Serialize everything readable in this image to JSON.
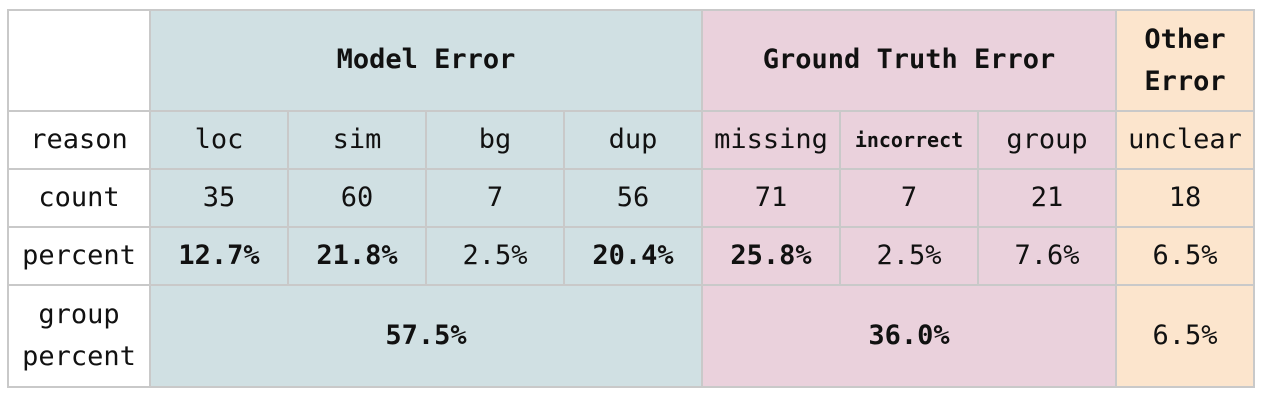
{
  "groups": {
    "model": "Model Error",
    "gt": "Ground Truth Error",
    "other_line1": "Other",
    "other_line2": "Error"
  },
  "row_labels": {
    "reason": "reason",
    "count": "count",
    "percent": "percent",
    "group_line1": "group",
    "group_line2": "percent"
  },
  "reasons": [
    "loc",
    "sim",
    "bg",
    "dup",
    "missing",
    "incorrect",
    "group",
    "unclear"
  ],
  "counts": [
    "35",
    "60",
    "7",
    "56",
    "71",
    "7",
    "21",
    "18"
  ],
  "percents": [
    "12.7%",
    "21.8%",
    "2.5%",
    "20.4%",
    "25.8%",
    "2.5%",
    "7.6%",
    "6.5%"
  ],
  "group_percents": {
    "model": "57.5%",
    "gt": "36.0%",
    "other": "6.5%"
  },
  "colors": {
    "model": "#d0e0e3",
    "gt": "#ead1dc",
    "other": "#fce5cd",
    "border": "#c9c9c9"
  }
}
